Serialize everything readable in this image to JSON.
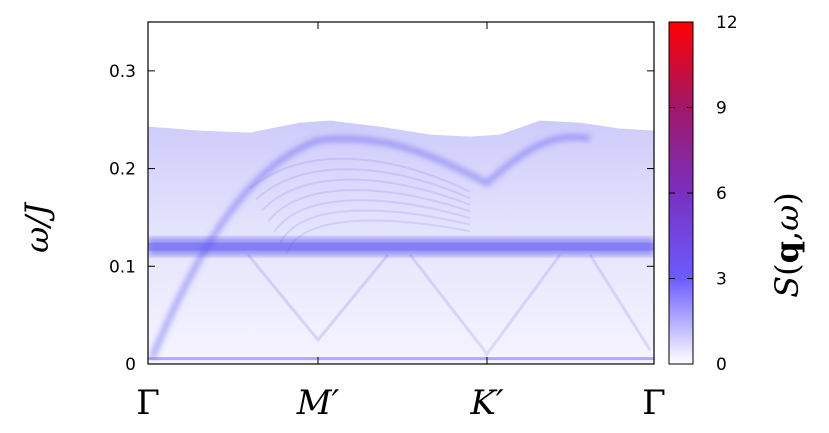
{
  "chart_data": {
    "type": "heatmap",
    "title": "",
    "ylabel": "ω/J",
    "xlabel": "",
    "x_ticks": [
      "Γ",
      "M′",
      "K′",
      "Γ"
    ],
    "y_ticks": [
      "0",
      "0.1",
      "0.2",
      "0.3"
    ],
    "y_tick_values": [
      0,
      0.1,
      0.2,
      0.3
    ],
    "ylim": [
      0,
      0.35
    ],
    "colorbar": {
      "label": "S(q,ω)",
      "range": [
        0,
        12
      ],
      "ticks": [
        "0",
        "3",
        "6",
        "9",
        "12"
      ],
      "tick_values": [
        0,
        3,
        6,
        9,
        12
      ],
      "colors": [
        "#ffffff",
        "#6b5cff",
        "#7a2fc0",
        "#a0186a",
        "#ff0000"
      ]
    },
    "features": {
      "flat_band_energy": 0.12,
      "continuum_top": 0.245,
      "dispersion_top_at_M": 0.235,
      "dispersion_at_K": 0.185,
      "low_energy_line": 0.005
    }
  }
}
